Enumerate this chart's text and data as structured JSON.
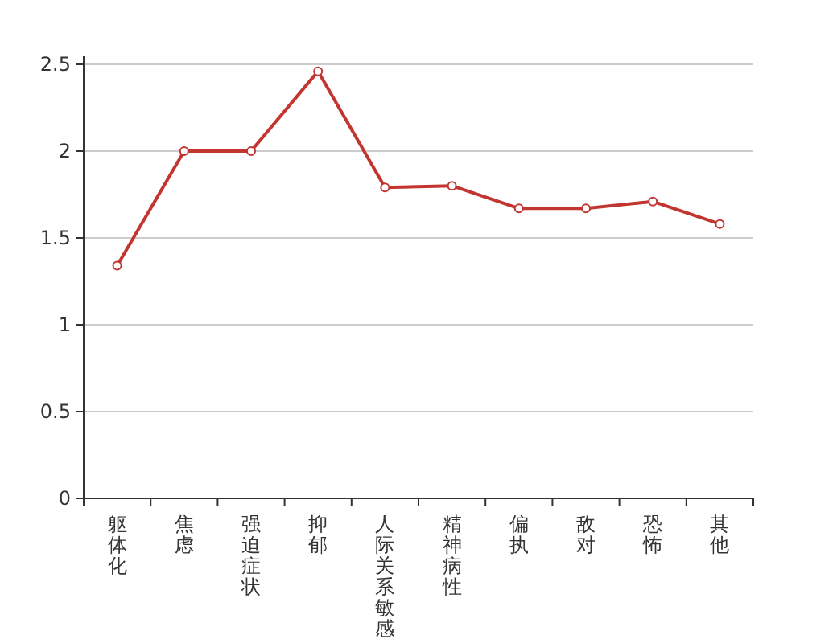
{
  "chart_data": {
    "type": "line",
    "categories": [
      "躯体化",
      "焦虑",
      "强迫症状",
      "抑郁",
      "人际关系敏感",
      "精神病性",
      "偏执",
      "敌对",
      "恐怖",
      "其他"
    ],
    "series": [
      {
        "color": "#c23531",
        "values": [
          1.34,
          2.0,
          2.0,
          2.46,
          1.79,
          1.8,
          1.67,
          1.67,
          1.71,
          1.58
        ]
      }
    ],
    "ylim": [
      0,
      2.5
    ],
    "yticks": [
      0,
      0.5,
      1,
      1.5,
      2,
      2.5
    ],
    "grid": "y",
    "marker": "circle",
    "line_style": "solid"
  }
}
